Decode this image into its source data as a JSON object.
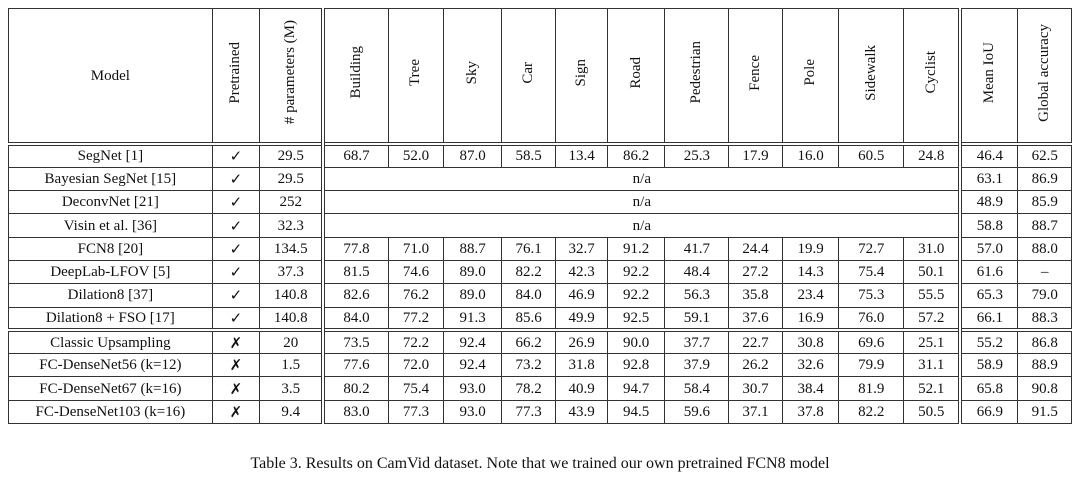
{
  "table": {
    "headers": [
      "Model",
      "Pretrained",
      "# parameters (M)",
      "Building",
      "Tree",
      "Sky",
      "Car",
      "Sign",
      "Road",
      "Pedestrian",
      "Fence",
      "Pole",
      "Sidewalk",
      "Cyclist",
      "Mean IoU",
      "Global accuracy"
    ],
    "rows": [
      {
        "model": "SegNet [1]",
        "pretrained": "✓",
        "params": "29.5",
        "cls": [
          "68.7",
          "52.0",
          "87.0",
          "58.5",
          "13.4",
          "86.2",
          "25.3",
          "17.9",
          "16.0",
          "60.5",
          "24.8"
        ],
        "miou": "46.4",
        "gacc": "62.5",
        "bold": []
      },
      {
        "model": "Bayesian SegNet [15]",
        "pretrained": "✓",
        "params": "29.5",
        "na": "n/a",
        "miou": "63.1",
        "gacc": "86.9",
        "bold": []
      },
      {
        "model": "DeconvNet [21]",
        "pretrained": "✓",
        "params": "252",
        "na": "n/a",
        "miou": "48.9",
        "gacc": "85.9",
        "bold": []
      },
      {
        "model": "Visin et al. [36]",
        "pretrained": "✓",
        "params": "32.3",
        "na": "n/a",
        "miou": "58.8",
        "gacc": "88.7",
        "bold": []
      },
      {
        "model": "FCN8 [20]",
        "pretrained": "✓",
        "params": "134.5",
        "cls": [
          "77.8",
          "71.0",
          "88.7",
          "76.1",
          "32.7",
          "91.2",
          "41.7",
          "24.4",
          "19.9",
          "72.7",
          "31.0"
        ],
        "miou": "57.0",
        "gacc": "88.0",
        "bold": []
      },
      {
        "model": "DeepLab-LFOV [5]",
        "pretrained": "✓",
        "params": "37.3",
        "cls": [
          "81.5",
          "74.6",
          "89.0",
          "82.2",
          "42.3",
          "92.2",
          "48.4",
          "27.2",
          "14.3",
          "75.4",
          "50.1"
        ],
        "miou": "61.6",
        "gacc": "–",
        "bold": []
      },
      {
        "model": "Dilation8 [37]",
        "pretrained": "✓",
        "params": "140.8",
        "cls": [
          "82.6",
          "76.2",
          "89.0",
          "84.0",
          "46.9",
          "92.2",
          "56.3",
          "35.8",
          "23.4",
          "75.3",
          "55.5"
        ],
        "miou": "65.3",
        "gacc": "79.0",
        "bold": []
      },
      {
        "model": "Dilation8 + FSO [17]",
        "pretrained": "✓",
        "params": "140.8",
        "cls": [
          "84.0",
          "77.2",
          "91.3",
          "85.6",
          "49.9",
          "92.5",
          "59.1",
          "37.6",
          "16.9",
          "76.0",
          "57.2"
        ],
        "miou": "66.1",
        "gacc": "88.3",
        "bold": [
          0,
          3,
          4,
          7,
          10
        ]
      },
      {
        "model": "Classic Upsampling",
        "pretrained": "✗",
        "params": "20",
        "cls": [
          "73.5",
          "72.2",
          "92.4",
          "66.2",
          "26.9",
          "90.0",
          "37.7",
          "22.7",
          "30.8",
          "69.6",
          "25.1"
        ],
        "miou": "55.2",
        "gacc": "86.8",
        "bold": []
      },
      {
        "model": "FC-DenseNet56 (k=12)",
        "pretrained": "✗",
        "params": "1.5",
        "cls": [
          "77.6",
          "72.0",
          "92.4",
          "73.2",
          "31.8",
          "92.8",
          "37.9",
          "26.2",
          "32.6",
          "79.9",
          "31.1"
        ],
        "miou": "58.9",
        "gacc": "88.9",
        "bold": []
      },
      {
        "model": "FC-DenseNet67 (k=16)",
        "pretrained": "✗",
        "params": "3.5",
        "cls": [
          "80.2",
          "75.4",
          "93.0",
          "78.2",
          "40.9",
          "94.7",
          "58.4",
          "30.7",
          "38.4",
          "81.9",
          "52.1"
        ],
        "miou": "65.8",
        "gacc": "90.8",
        "bold": [
          5,
          8
        ]
      },
      {
        "model": "FC-DenseNet103 (k=16)",
        "pretrained": "✗",
        "params": "9.4",
        "cls": [
          "83.0",
          "77.3",
          "93.0",
          "77.3",
          "43.9",
          "94.5",
          "59.6",
          "37.1",
          "37.8",
          "82.2",
          "50.5"
        ],
        "miou": "66.9",
        "gacc": "91.5",
        "bold": [
          1,
          2,
          6,
          9,
          "miou",
          "gacc"
        ]
      }
    ]
  },
  "caption": "Table 3. Results on CamVid dataset. Note that we trained our own pretrained FCN8 model"
}
